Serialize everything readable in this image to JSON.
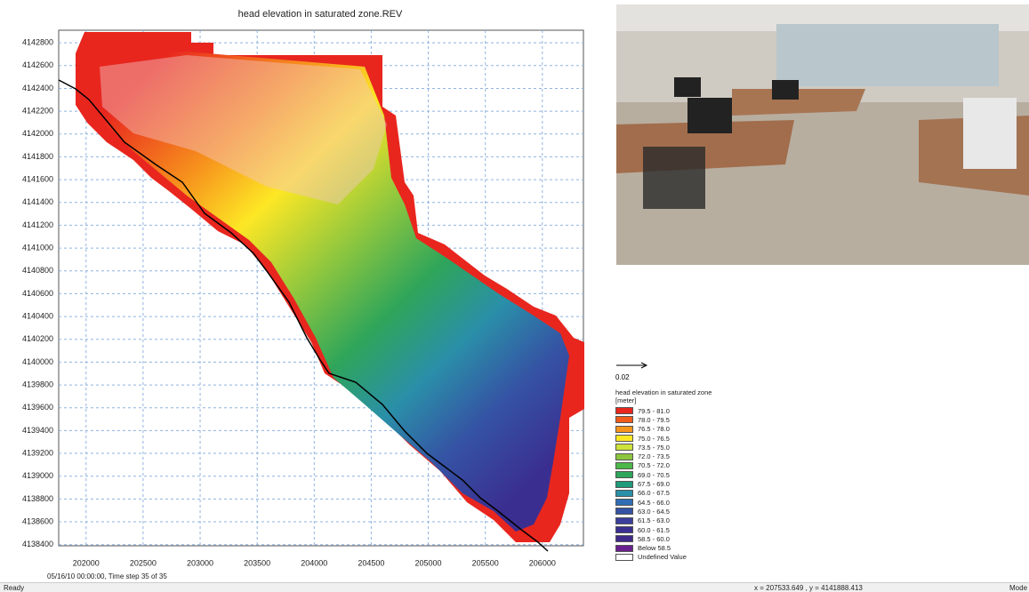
{
  "plot": {
    "title": "head elevation in saturated zone.REV",
    "xlim": [
      201760,
      206360
    ],
    "ylim": [
      4138390,
      4142910
    ],
    "xticks": [
      202000,
      202500,
      203000,
      203500,
      204000,
      204500,
      205000,
      205500,
      206000
    ],
    "yticks": [
      4138400,
      4138600,
      4138800,
      4139000,
      4139200,
      4139400,
      4139600,
      4139800,
      4140000,
      4140200,
      4140400,
      4140600,
      4140800,
      4141000,
      4141200,
      4141400,
      4141600,
      4141800,
      4142000,
      4142200,
      4142400,
      4142600,
      4142800
    ],
    "timestamp": "05/16/10 00:00:00, Time step 35 of 35"
  },
  "scale": {
    "label": "0.02"
  },
  "legend": {
    "title": "head elevation in saturated zone [meter]",
    "items": [
      {
        "label": "79.5 - 81.0",
        "color": "#e8261e"
      },
      {
        "label": "78.0 - 79.5",
        "color": "#f25a1c"
      },
      {
        "label": "76.5 - 78.0",
        "color": "#f7941d"
      },
      {
        "label": "75.0 - 76.5",
        "color": "#fde725"
      },
      {
        "label": "73.5 - 75.0",
        "color": "#cde23a"
      },
      {
        "label": "72.0 - 73.5",
        "color": "#8cc63f"
      },
      {
        "label": "70.5 - 72.0",
        "color": "#4db848"
      },
      {
        "label": "69.0 - 70.5",
        "color": "#2ea55a"
      },
      {
        "label": "67.5 - 69.0",
        "color": "#1f9a7a"
      },
      {
        "label": "66.0 - 67.5",
        "color": "#2a8fa8"
      },
      {
        "label": "64.5 - 66.0",
        "color": "#2f6eb5"
      },
      {
        "label": "63.0 - 64.5",
        "color": "#3553a4"
      },
      {
        "label": "61.5 - 63.0",
        "color": "#3a3f9c"
      },
      {
        "label": "60.0 - 61.5",
        "color": "#3a2f90"
      },
      {
        "label": "58.5 - 60.0",
        "color": "#3f2a8a"
      },
      {
        "label": "Below 58.5",
        "color": "#6a1f8f"
      },
      {
        "label": "Undefined Value",
        "color": "#ffffff"
      }
    ]
  },
  "status": {
    "left": "Ready",
    "coords": "x = 207533.649 , y = 4141888.413",
    "mode": "Mode"
  }
}
